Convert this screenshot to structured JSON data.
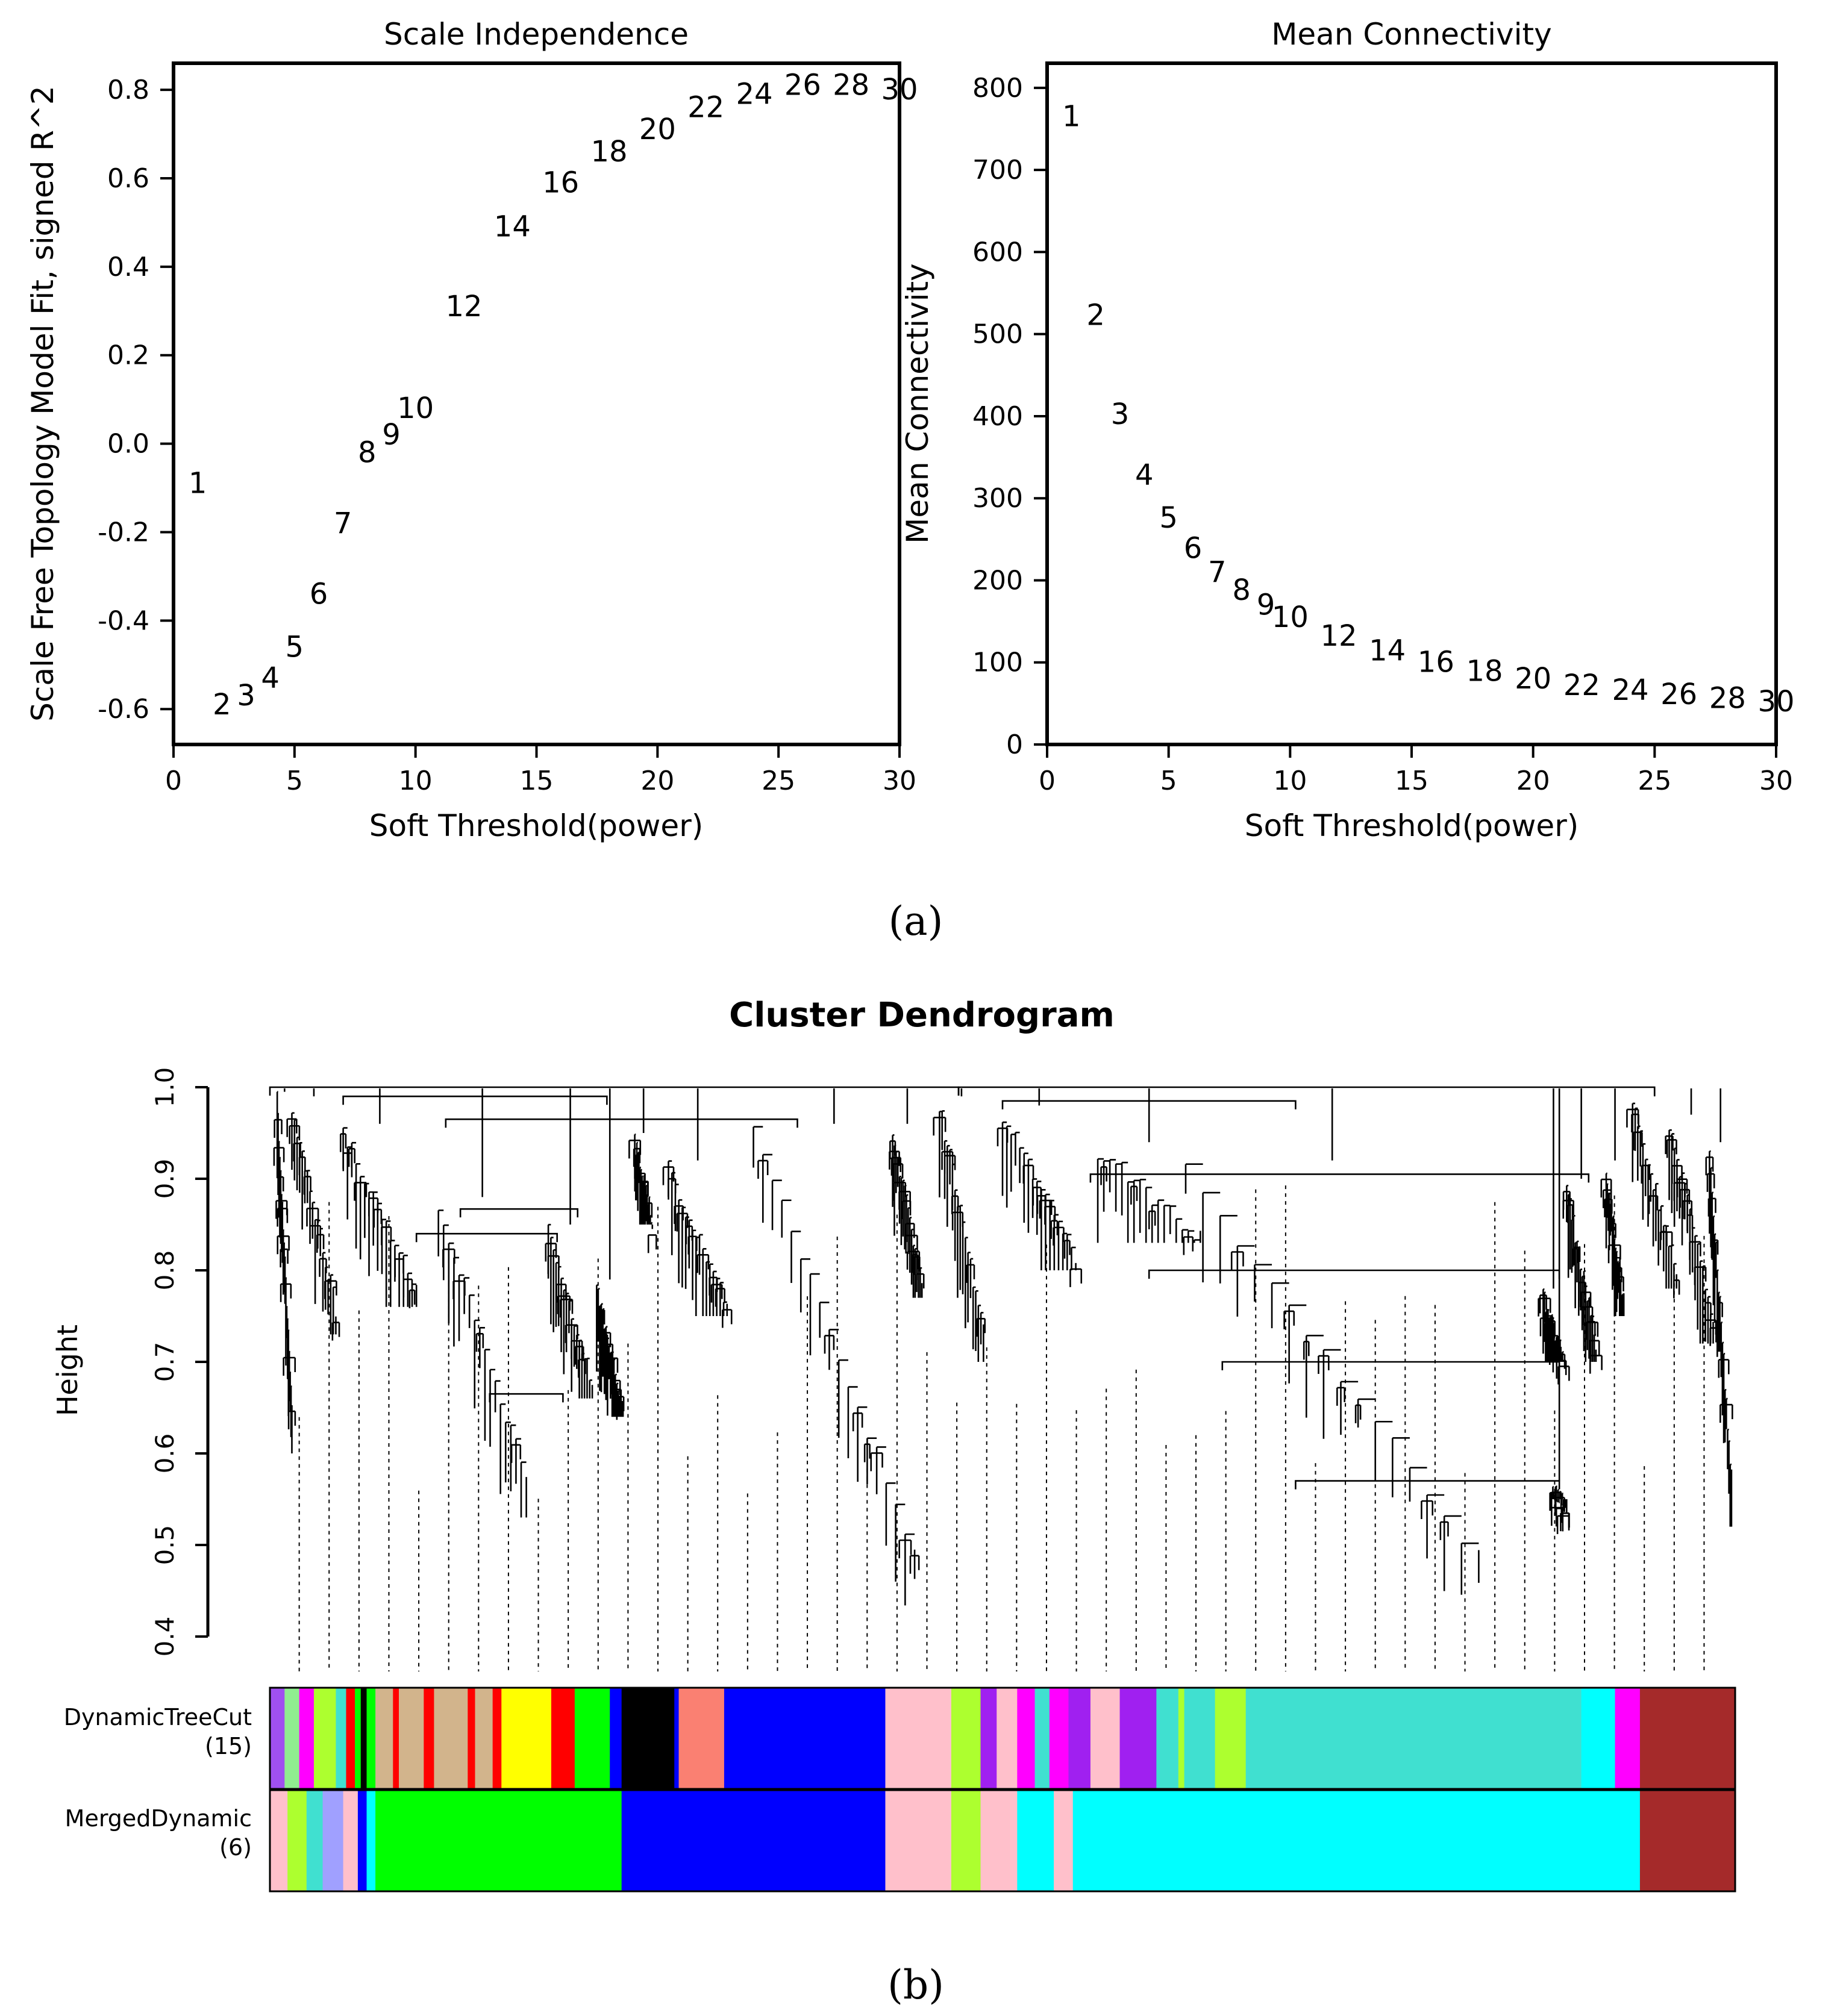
{
  "panel_a_label": "(a)",
  "panel_b_label": "(b)",
  "chart_data": [
    {
      "type": "scatter",
      "title": "Scale Independence",
      "xlabel": "Soft Threshold(power)",
      "ylabel": "Scale Free Topology Model Fit, signed R^2",
      "xlim": [
        0,
        30
      ],
      "ylim": [
        -0.68,
        0.86
      ],
      "xticks": [
        0,
        5,
        10,
        15,
        20,
        25,
        30
      ],
      "yticks": [
        -0.6,
        -0.4,
        -0.2,
        0.0,
        0.2,
        0.4,
        0.6,
        0.8
      ],
      "ytick_labels": [
        "-0.6",
        "-0.4",
        "-0.2",
        "0.0",
        "0.2",
        "0.4",
        "0.6",
        "0.8"
      ],
      "points": [
        {
          "label": "1",
          "x": 1,
          "y": -0.09
        },
        {
          "label": "2",
          "x": 2,
          "y": -0.59
        },
        {
          "label": "3",
          "x": 3,
          "y": -0.57
        },
        {
          "label": "4",
          "x": 4,
          "y": -0.53
        },
        {
          "label": "5",
          "x": 5,
          "y": -0.46
        },
        {
          "label": "6",
          "x": 6,
          "y": -0.34
        },
        {
          "label": "7",
          "x": 7,
          "y": -0.18
        },
        {
          "label": "8",
          "x": 8,
          "y": -0.02
        },
        {
          "label": "9",
          "x": 9,
          "y": 0.02
        },
        {
          "label": "10",
          "x": 10,
          "y": 0.08
        },
        {
          "label": "12",
          "x": 12,
          "y": 0.31
        },
        {
          "label": "14",
          "x": 14,
          "y": 0.49
        },
        {
          "label": "16",
          "x": 16,
          "y": 0.59
        },
        {
          "label": "18",
          "x": 18,
          "y": 0.66
        },
        {
          "label": "20",
          "x": 20,
          "y": 0.71
        },
        {
          "label": "22",
          "x": 22,
          "y": 0.76
        },
        {
          "label": "24",
          "x": 24,
          "y": 0.79
        },
        {
          "label": "26",
          "x": 26,
          "y": 0.81
        },
        {
          "label": "28",
          "x": 28,
          "y": 0.81
        },
        {
          "label": "30",
          "x": 30,
          "y": 0.8
        }
      ]
    },
    {
      "type": "scatter",
      "title": "Mean Connectivity",
      "xlabel": "Soft Threshold(power)",
      "ylabel": "Mean Connectivity",
      "xlim": [
        0,
        30
      ],
      "ylim": [
        0,
        830
      ],
      "xticks": [
        0,
        5,
        10,
        15,
        20,
        25,
        30
      ],
      "yticks": [
        0,
        100,
        200,
        300,
        400,
        500,
        600,
        700,
        800
      ],
      "ytick_labels": [
        "0",
        "100",
        "200",
        "300",
        "400",
        "500",
        "600",
        "700",
        "800"
      ],
      "points": [
        {
          "label": "1",
          "x": 1,
          "y": 765
        },
        {
          "label": "2",
          "x": 2,
          "y": 523
        },
        {
          "label": "3",
          "x": 3,
          "y": 402
        },
        {
          "label": "4",
          "x": 4,
          "y": 328
        },
        {
          "label": "5",
          "x": 5,
          "y": 276
        },
        {
          "label": "6",
          "x": 6,
          "y": 239
        },
        {
          "label": "7",
          "x": 7,
          "y": 210
        },
        {
          "label": "8",
          "x": 8,
          "y": 188
        },
        {
          "label": "9",
          "x": 9,
          "y": 170
        },
        {
          "label": "10",
          "x": 10,
          "y": 155
        },
        {
          "label": "12",
          "x": 12,
          "y": 132
        },
        {
          "label": "14",
          "x": 14,
          "y": 114
        },
        {
          "label": "16",
          "x": 16,
          "y": 100
        },
        {
          "label": "18",
          "x": 18,
          "y": 89
        },
        {
          "label": "20",
          "x": 20,
          "y": 80
        },
        {
          "label": "22",
          "x": 22,
          "y": 72
        },
        {
          "label": "24",
          "x": 24,
          "y": 66
        },
        {
          "label": "26",
          "x": 26,
          "y": 61
        },
        {
          "label": "28",
          "x": 28,
          "y": 56
        },
        {
          "label": "30",
          "x": 30,
          "y": 52
        }
      ]
    },
    {
      "type": "dendrogram",
      "title": "Cluster Dendrogram",
      "ylabel": "Height",
      "ylim": [
        0.4,
        1.0
      ],
      "yticks": [
        0.4,
        0.5,
        0.6,
        0.7,
        0.8,
        0.9,
        1.0
      ],
      "ytick_labels": [
        "0.4",
        "0.5",
        "0.6",
        "0.7",
        "0.8",
        "0.9",
        "1.0"
      ],
      "color_rows": [
        {
          "name": "DynamicTreeCut",
          "count_label": "(15)",
          "segments": [
            {
              "start": 0.0,
              "end": 0.01,
              "color": "#a050f0"
            },
            {
              "start": 0.01,
              "end": 0.02,
              "color": "#90ee90"
            },
            {
              "start": 0.02,
              "end": 0.03,
              "color": "#ff00ff"
            },
            {
              "start": 0.03,
              "end": 0.045,
              "color": "#adff2f"
            },
            {
              "start": 0.045,
              "end": 0.052,
              "color": "#40e0d0"
            },
            {
              "start": 0.052,
              "end": 0.058,
              "color": "#ff0000"
            },
            {
              "start": 0.058,
              "end": 0.062,
              "color": "#00ff00"
            },
            {
              "start": 0.062,
              "end": 0.066,
              "color": "#000000"
            },
            {
              "start": 0.066,
              "end": 0.072,
              "color": "#00ff00"
            },
            {
              "start": 0.072,
              "end": 0.084,
              "color": "#d2b48c"
            },
            {
              "start": 0.084,
              "end": 0.088,
              "color": "#ff0000"
            },
            {
              "start": 0.088,
              "end": 0.105,
              "color": "#d2b48c"
            },
            {
              "start": 0.105,
              "end": 0.112,
              "color": "#ff0000"
            },
            {
              "start": 0.112,
              "end": 0.135,
              "color": "#d2b48c"
            },
            {
              "start": 0.135,
              "end": 0.14,
              "color": "#ff0000"
            },
            {
              "start": 0.14,
              "end": 0.152,
              "color": "#d2b48c"
            },
            {
              "start": 0.152,
              "end": 0.158,
              "color": "#ff0000"
            },
            {
              "start": 0.158,
              "end": 0.192,
              "color": "#ffff00"
            },
            {
              "start": 0.192,
              "end": 0.208,
              "color": "#ff0000"
            },
            {
              "start": 0.208,
              "end": 0.232,
              "color": "#00ff00"
            },
            {
              "start": 0.232,
              "end": 0.24,
              "color": "#0000ff"
            },
            {
              "start": 0.24,
              "end": 0.276,
              "color": "#000000"
            },
            {
              "start": 0.276,
              "end": 0.279,
              "color": "#0000ff"
            },
            {
              "start": 0.279,
              "end": 0.31,
              "color": "#fa8072"
            },
            {
              "start": 0.31,
              "end": 0.42,
              "color": "#0000ff"
            },
            {
              "start": 0.42,
              "end": 0.465,
              "color": "#ffc0cb"
            },
            {
              "start": 0.465,
              "end": 0.485,
              "color": "#adff2f"
            },
            {
              "start": 0.485,
              "end": 0.496,
              "color": "#a020f0"
            },
            {
              "start": 0.496,
              "end": 0.51,
              "color": "#ffc0cb"
            },
            {
              "start": 0.51,
              "end": 0.522,
              "color": "#ff00ff"
            },
            {
              "start": 0.522,
              "end": 0.532,
              "color": "#40e0d0"
            },
            {
              "start": 0.532,
              "end": 0.545,
              "color": "#ff00ff"
            },
            {
              "start": 0.545,
              "end": 0.56,
              "color": "#a020f0"
            },
            {
              "start": 0.56,
              "end": 0.58,
              "color": "#ffc0cb"
            },
            {
              "start": 0.58,
              "end": 0.605,
              "color": "#a020f0"
            },
            {
              "start": 0.605,
              "end": 0.62,
              "color": "#40e0d0"
            },
            {
              "start": 0.62,
              "end": 0.624,
              "color": "#adff2f"
            },
            {
              "start": 0.624,
              "end": 0.645,
              "color": "#40e0d0"
            },
            {
              "start": 0.645,
              "end": 0.666,
              "color": "#adff2f"
            },
            {
              "start": 0.666,
              "end": 0.895,
              "color": "#40e0d0"
            },
            {
              "start": 0.895,
              "end": 0.918,
              "color": "#00ffff"
            },
            {
              "start": 0.918,
              "end": 0.935,
              "color": "#ff00ff"
            },
            {
              "start": 0.935,
              "end": 1.0,
              "color": "#a52a2a"
            }
          ]
        },
        {
          "name": "MergedDynamic",
          "count_label": "(6)",
          "segments": [
            {
              "start": 0.0,
              "end": 0.012,
              "color": "#ffc0cb"
            },
            {
              "start": 0.012,
              "end": 0.025,
              "color": "#adff2f"
            },
            {
              "start": 0.025,
              "end": 0.036,
              "color": "#40e0d0"
            },
            {
              "start": 0.036,
              "end": 0.05,
              "color": "#a0a0ff"
            },
            {
              "start": 0.05,
              "end": 0.06,
              "color": "#ffc0cb"
            },
            {
              "start": 0.06,
              "end": 0.066,
              "color": "#0000ff"
            },
            {
              "start": 0.066,
              "end": 0.072,
              "color": "#00ffff"
            },
            {
              "start": 0.072,
              "end": 0.24,
              "color": "#00ff00"
            },
            {
              "start": 0.24,
              "end": 0.42,
              "color": "#0000ff"
            },
            {
              "start": 0.42,
              "end": 0.465,
              "color": "#ffc0cb"
            },
            {
              "start": 0.465,
              "end": 0.485,
              "color": "#adff2f"
            },
            {
              "start": 0.485,
              "end": 0.51,
              "color": "#ffc0cb"
            },
            {
              "start": 0.51,
              "end": 0.535,
              "color": "#00ffff"
            },
            {
              "start": 0.535,
              "end": 0.548,
              "color": "#ffc0cb"
            },
            {
              "start": 0.548,
              "end": 0.935,
              "color": "#00ffff"
            },
            {
              "start": 0.935,
              "end": 1.0,
              "color": "#a52a2a"
            }
          ]
        }
      ]
    }
  ],
  "colors": {
    "axis": "#000000",
    "text": "#000000",
    "background": "#ffffff"
  }
}
